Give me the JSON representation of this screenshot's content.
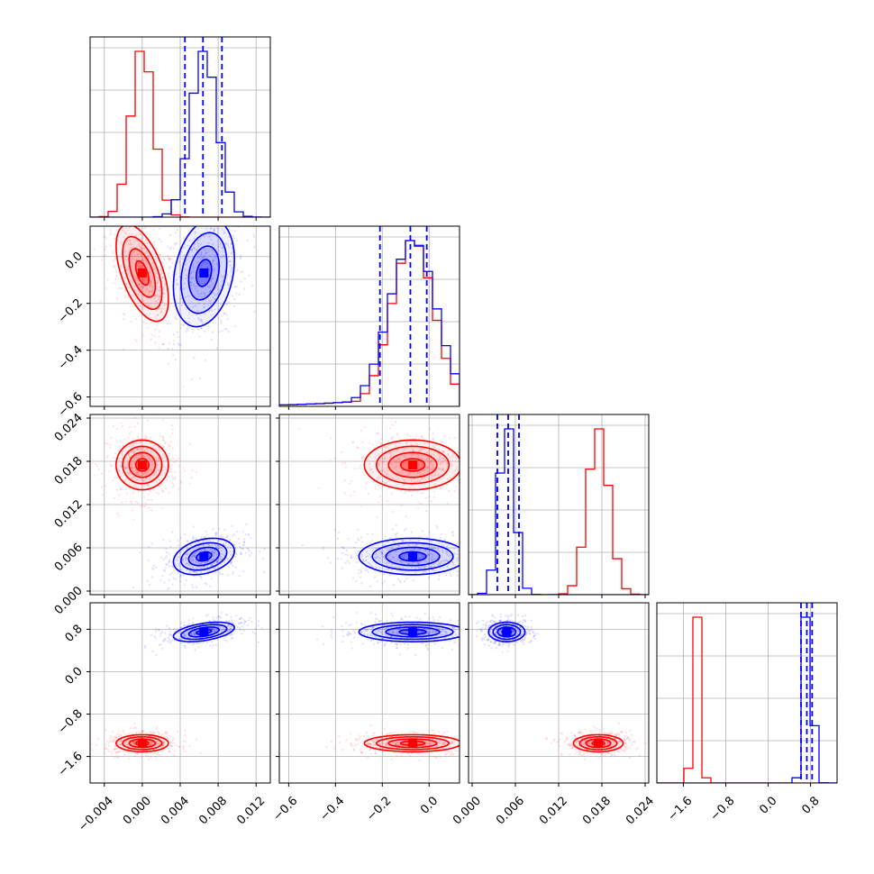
{
  "chart_data": {
    "type": "corner",
    "grid": true,
    "series_colors": {
      "red": "#ff0000",
      "blue": "#0000ff"
    },
    "parameters": [
      {
        "index": 0,
        "range": [
          -0.0055,
          0.0135
        ],
        "ticks": [
          -0.004,
          0.0,
          0.004,
          0.008,
          0.012
        ],
        "tick_labels": [
          "−0.004",
          "0.000",
          "0.004",
          "0.008",
          "0.012"
        ]
      },
      {
        "index": 1,
        "range": [
          -0.64,
          0.13
        ],
        "ticks": [
          -0.6,
          -0.4,
          -0.2,
          0.0
        ],
        "tick_labels": [
          "−0.6",
          "−0.4",
          "−0.2",
          "0.0"
        ]
      },
      {
        "index": 2,
        "range": [
          -0.0005,
          0.0245
        ],
        "ticks": [
          0.0,
          0.006,
          0.012,
          0.018,
          0.024
        ],
        "tick_labels": [
          "0.000",
          "0.006",
          "0.012",
          "0.018",
          "0.024"
        ]
      },
      {
        "index": 3,
        "range": [
          -2.1,
          1.3
        ],
        "ticks": [
          -1.6,
          -0.8,
          0.0,
          0.8
        ],
        "tick_labels": [
          "−1.6",
          "−0.8",
          "0.0",
          "0.8"
        ]
      }
    ],
    "series": [
      {
        "color": "red",
        "means": [
          0.0,
          -0.07,
          0.0175,
          -1.35
        ],
        "sds": [
          0.0012,
          0.09,
          0.0015,
          0.07
        ],
        "correlations": {
          "0-1": -0.55,
          "0-2": 0.0,
          "0-3": 0.0,
          "1-2": 0.0,
          "1-3": 0.0,
          "2-3": 0.0
        },
        "quantile_lines": []
      },
      {
        "color": "blue",
        "means": [
          0.0065,
          -0.07,
          0.0048,
          0.75
        ],
        "sds": [
          0.0014,
          0.1,
          0.0011,
          0.08
        ],
        "correlations": {
          "0-1": 0.25,
          "0-2": 0.3,
          "0-3": 0.45,
          "1-2": 0.0,
          "1-3": 0.0,
          "2-3": 0.0
        },
        "quantile_lines": [
          [
            0.0045,
            0.0064,
            0.0084
          ],
          [
            -0.21,
            -0.08,
            -0.01
          ],
          [
            0.0035,
            0.005,
            0.0065
          ],
          [
            0.62,
            0.73,
            0.83
          ]
        ]
      }
    ]
  }
}
